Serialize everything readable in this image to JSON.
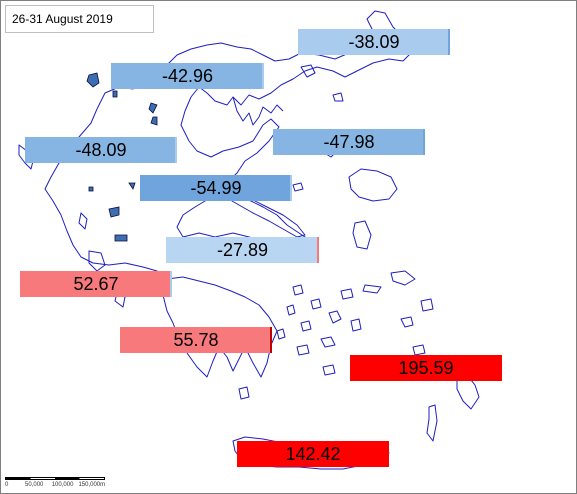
{
  "title": "26-31  August 2019",
  "scale_bar": {
    "labels": [
      "0",
      "50,000",
      "100,000",
      "150,000m"
    ]
  },
  "colors": {
    "negative_strong": "#6fa5dc",
    "negative_mid": "#86b5e3",
    "negative_light": "#a9cbee",
    "positive_mid": "#f8797c",
    "positive_strong": "#ff0000",
    "coast": "#1f1fbf"
  },
  "regions": [
    {
      "id": "east-macedonia-thrace",
      "value": "-38.09",
      "color": "#a9cbee",
      "edge": "#6fa5dc"
    },
    {
      "id": "central-macedonia",
      "value": "-42.96",
      "color": "#86b5e3",
      "edge": "#a9cbee"
    },
    {
      "id": "western-macedonia",
      "value": "-48.09",
      "color": "#86b5e3",
      "edge": "#a9cbee"
    },
    {
      "id": "north-aegean",
      "value": "-47.98",
      "color": "#86b5e3",
      "edge": "#6fa5dc"
    },
    {
      "id": "thessaly",
      "value": "-54.99",
      "color": "#6fa5dc",
      "edge": "#a9cbee"
    },
    {
      "id": "central-greece",
      "value": "-27.89",
      "color": "#b8d6f2",
      "edge": "#f8797c"
    },
    {
      "id": "western-greece",
      "value": "52.67",
      "color": "#f8797c",
      "edge": "#a9cbee"
    },
    {
      "id": "peloponnese",
      "value": "55.78",
      "color": "#f8797c",
      "edge": "#c00000"
    },
    {
      "id": "south-aegean",
      "value": "195.59",
      "color": "#ff0000",
      "edge": "#ff0000"
    },
    {
      "id": "crete",
      "value": "142.42",
      "color": "#ff0000",
      "edge": "#ff0000"
    }
  ]
}
